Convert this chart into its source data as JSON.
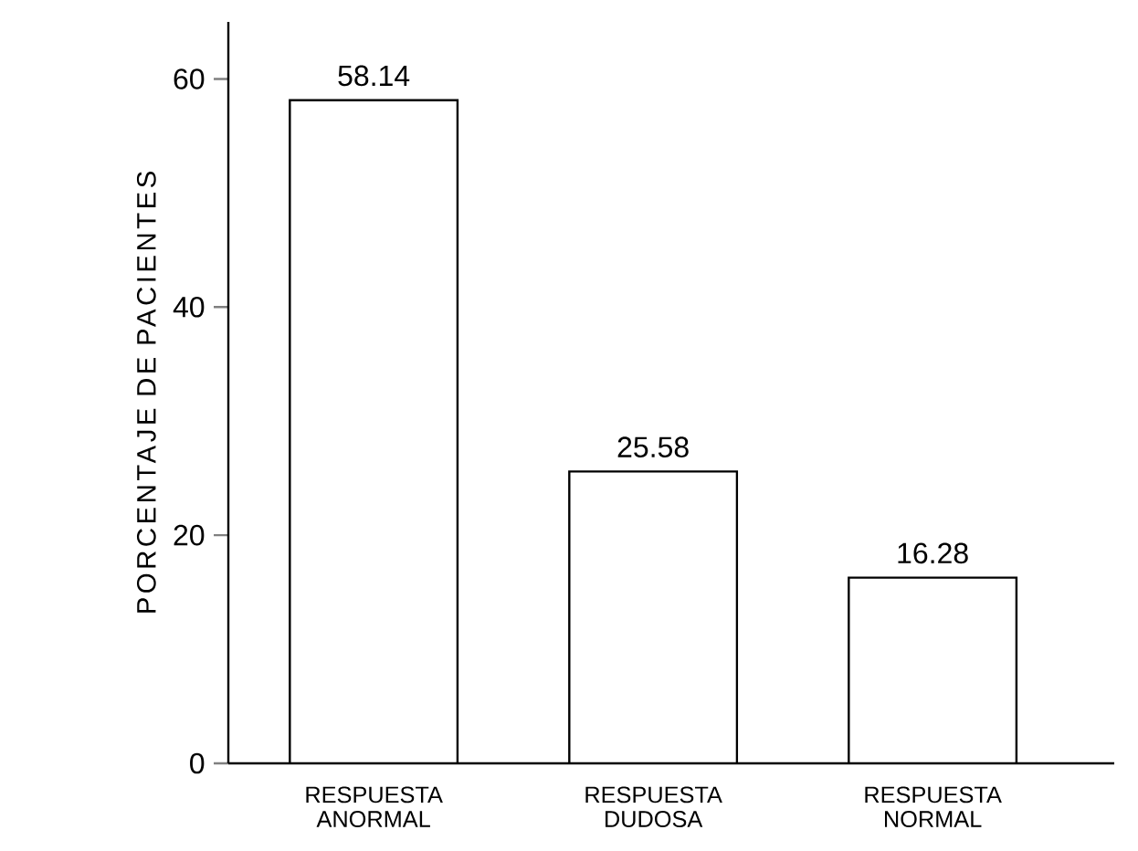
{
  "chart_data": {
    "type": "bar",
    "ylabel": "PORCENTAJE DE PACIENTES",
    "categories": [
      "RESPUESTA ANORMAL",
      "RESPUESTA DUDOSA",
      "RESPUESTA NORMAL"
    ],
    "values": [
      58.14,
      25.58,
      16.28
    ],
    "colors": [
      "#ffffff",
      "#ffffff",
      "#ffffff"
    ],
    "ylim": [
      0,
      65
    ],
    "yticks": [
      0,
      20,
      40,
      60
    ],
    "data_labels": true,
    "grid": false
  }
}
